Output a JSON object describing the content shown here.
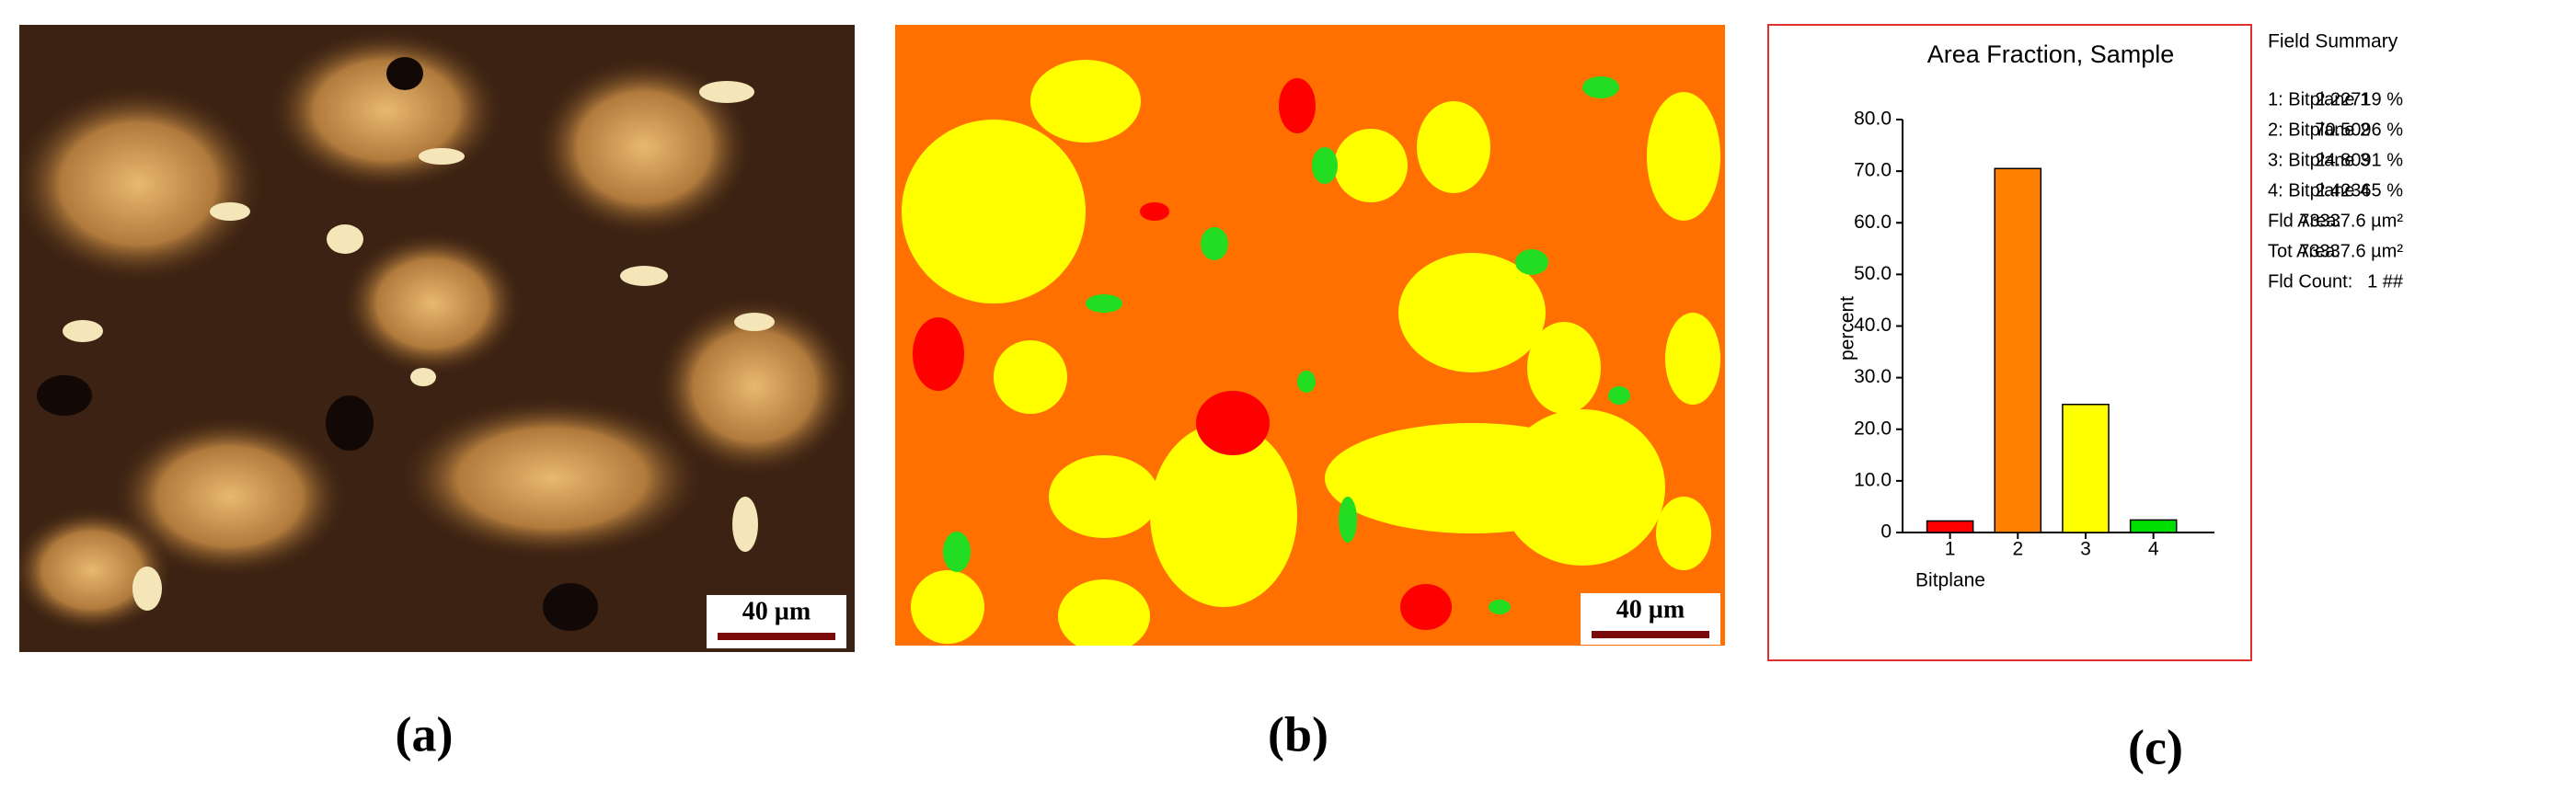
{
  "panels": [
    {
      "label": "(a)",
      "scale_bar": "40 µm"
    },
    {
      "label": "(b)",
      "scale_bar": "40 µm"
    },
    {
      "label": "(c)"
    }
  ],
  "chart_data": {
    "type": "bar",
    "title": "Area Fraction, Sample",
    "categories": [
      "1",
      "2",
      "3",
      "4"
    ],
    "values": [
      2.22719,
      70.5096,
      24.8091,
      2.42365
    ],
    "colors": [
      "#ff0000",
      "#ff7f00",
      "#ffff00",
      "#00e000"
    ],
    "x_label": "Bitplane",
    "y_label": "percent",
    "ylim": [
      0,
      80
    ],
    "yticks": [
      0,
      {
        "value": 10,
        "label": "10.0"
      },
      {
        "value": 20,
        "label": "20.0"
      },
      {
        "value": 30,
        "label": "30.0"
      },
      {
        "value": 40,
        "label": "40.0"
      },
      {
        "value": 50,
        "label": "50.0"
      },
      {
        "value": 60,
        "label": "60.0"
      },
      {
        "value": 70,
        "label": "70.0"
      },
      {
        "value": 80,
        "label": "80.0"
      }
    ],
    "grid": false
  },
  "field_summary": {
    "title": "Field Summary",
    "rows": [
      [
        "1: Bitplane 1",
        "2.22719 %"
      ],
      [
        "2: Bitplane 2",
        "70.5096 %"
      ],
      [
        "3: Bitplane 3",
        "24.8091 %"
      ],
      [
        "4: Bitplane 4",
        "2.42365 %"
      ],
      [
        "Fld Area:",
        "73337.6 µm²"
      ],
      [
        "Tot Area:",
        "73337.6 µm²"
      ],
      [
        "Fld Count:",
        "1 ##"
      ]
    ]
  }
}
